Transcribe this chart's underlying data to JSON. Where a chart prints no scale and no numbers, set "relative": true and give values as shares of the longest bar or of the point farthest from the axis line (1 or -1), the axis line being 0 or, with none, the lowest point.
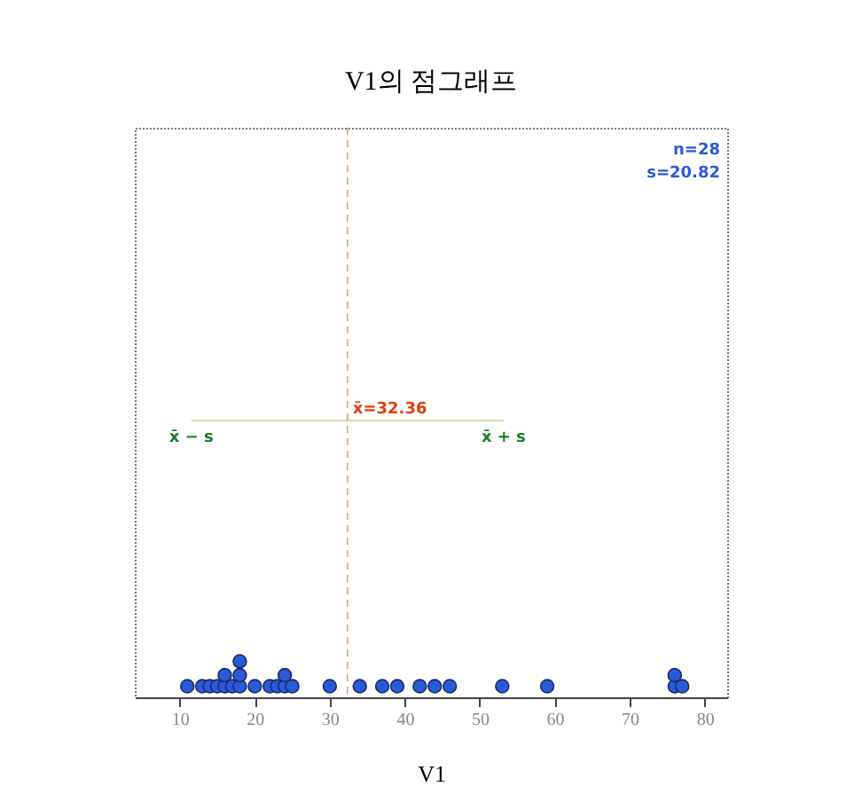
{
  "chart_data": {
    "type": "scatter",
    "title": "V1의 점그래프",
    "xlabel": "V1",
    "relative": true,
    "tick_labels": "x",
    "marker": "circle",
    "grid": false,
    "xlim": [
      4,
      83
    ],
    "xticks": [
      10,
      20,
      30,
      40,
      50,
      60,
      70,
      80
    ],
    "series": [
      {
        "type": "scatter",
        "color": "#2a5bd7",
        "x": [
          11,
          13,
          14,
          15,
          16,
          16,
          17,
          18,
          18,
          18,
          20,
          22,
          23,
          24,
          24,
          25,
          30,
          34,
          37,
          39,
          42,
          44,
          46,
          53,
          59,
          76,
          76,
          77
        ],
        "values": [
          0.04,
          0.04,
          0.04,
          0.04,
          0.04,
          0.08,
          0.04,
          0.04,
          0.08,
          0.13,
          0.04,
          0.04,
          0.04,
          0.04,
          0.08,
          0.04,
          0.04,
          0.04,
          0.04,
          0.04,
          0.04,
          0.04,
          0.04,
          0.04,
          0.04,
          0.04,
          0.08,
          0.04
        ]
      },
      {
        "type": "line",
        "color": "#d8e2b4",
        "marker": "none",
        "x": [
          11.54,
          53.18
        ],
        "values": [
          1,
          1
        ]
      }
    ],
    "ref_lines": [
      {
        "axis": "x",
        "value": 32.36,
        "label": "x̄=32.36",
        "color": "#e8a070",
        "line_style": "dashed"
      }
    ],
    "annotations": [
      {
        "text": "x̄ − s",
        "x": 11.54,
        "y": 1
      },
      {
        "text": "x̄ + s",
        "x": 53.18,
        "y": 1
      },
      "n=28",
      "s=20.82"
    ]
  }
}
